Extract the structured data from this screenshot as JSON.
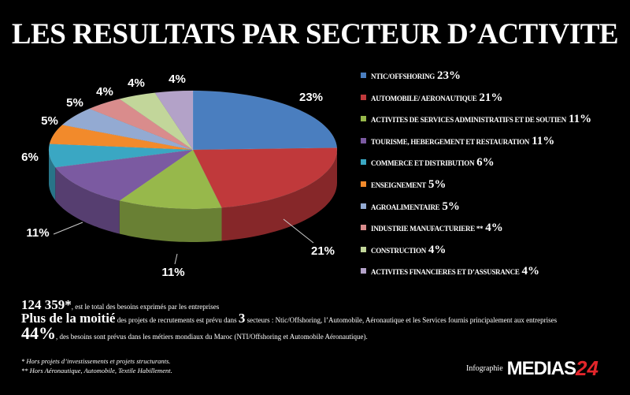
{
  "title": "LES RESULTATS PAR SECTEUR D’ACTIVITE",
  "chart_data": {
    "type": "pie",
    "style": "3d",
    "start": "top, clockwise",
    "categories": [
      "NTIC/OFFSHORING",
      "AUTOMOBILE/ AERONAUTIQUE",
      "ACTIVITES DE SERVICES ADMINISTRATIFS ET DE SOUTIEN",
      "TOURISME, HEBERGEMENT ET RESTAURATION",
      "COMMERCE ET DISTRIBUTION",
      "ENSEIGNEMENT",
      "AGROALIMENTAIRE",
      "INDUSTRIE MANUFACTURIERE**",
      "CONSTRUCTION",
      "ACTIVITES FINANCIERES ET D’ASSUSRANCE"
    ],
    "values": [
      23,
      21,
      11,
      11,
      6,
      5,
      5,
      4,
      4,
      4
    ],
    "labels": [
      "23%",
      "21%",
      "11%",
      "11%",
      "6%",
      "5%",
      "5%",
      "4%",
      "4%",
      "4%"
    ],
    "colors": [
      "#4a7ebf",
      "#c0393b",
      "#97b84b",
      "#7b5aa1",
      "#3aa7c3",
      "#f28a2b",
      "#93aad2",
      "#d98c8c",
      "#c2d69a",
      "#b3a2c8"
    ],
    "legend_placement": "right"
  },
  "legend_display": [
    "NTIC/OFFSHORING",
    "AUTOMOBILE/ AERONAUTIQUE",
    "ACTIVITES DE SERVICES ADMINISTRATIFS ET DE SOUTIEN",
    "TOURISME, HEBERGEMENT ET RESTAURATION",
    "COMMERCE ET DISTRIBUTION",
    "ENSEIGNEMENT",
    "AGROALIMENTAIRE",
    "INDUSTRIE MANUFACTURIERE **",
    "CONSTRUCTION",
    "ACTIVITES FINANCIERES ET D’ASSUSRANCE"
  ],
  "notes": {
    "total_value": "124 359*",
    "total_text": ", est le total des besoins exprimés par les entreprises",
    "half_big": "Plus de la moitié",
    "half_text1": " des projets de recrutements est prévu dans ",
    "half_num": "3",
    "half_text2": " secteurs : Ntic/Offshoring, l’Automobile, Aéronautique et les Services fournis principalement aux entreprises",
    "pct_big": "44%",
    "pct_text": ", des besoins sont prévus dans les métiers mondiaux du Maroc (NTI/Offshoring et Automobile Aéronautique).",
    "foot1": "* Hors projets d’investissements et projets structurants.",
    "foot2": "** Hors Aéronautique, Automobile, Textile Habillement."
  },
  "brand": {
    "prefix": "Infographie",
    "name": "MEDIAS",
    "num": "24"
  }
}
